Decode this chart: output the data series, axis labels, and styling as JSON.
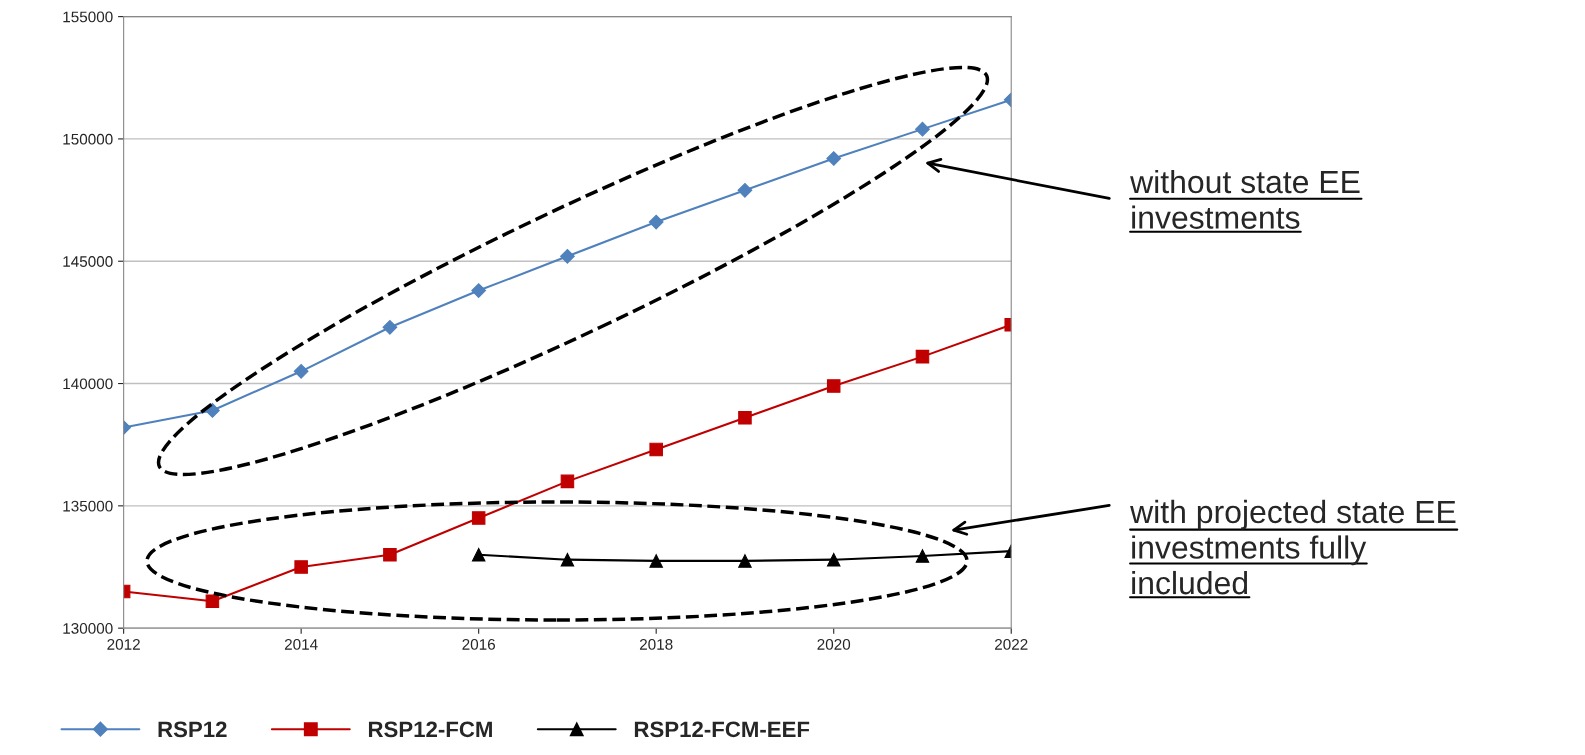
{
  "chart_data": {
    "type": "line",
    "x": [
      2012,
      2013,
      2014,
      2015,
      2016,
      2017,
      2018,
      2019,
      2020,
      2021,
      2022
    ],
    "series": [
      {
        "name": "RSP12",
        "color": "#4f81bd",
        "marker": "diamond",
        "values": [
          138200,
          138900,
          140500,
          142300,
          143800,
          145200,
          146600,
          147900,
          149200,
          150400,
          151600
        ]
      },
      {
        "name": "RSP12-FCM",
        "color": "#c00000",
        "marker": "square",
        "values": [
          131500,
          131100,
          132500,
          133000,
          134500,
          136000,
          137300,
          138600,
          139900,
          141100,
          142400
        ]
      },
      {
        "name": "RSP12-FCM-EEF",
        "color": "#000000",
        "marker": "triangle",
        "values": [
          null,
          null,
          null,
          null,
          133000,
          132800,
          132750,
          132750,
          132800,
          132950,
          133150
        ]
      }
    ],
    "xlim": [
      2012,
      2022
    ],
    "xticks": [
      2012,
      2014,
      2016,
      2018,
      2020,
      2022
    ],
    "ylim": [
      130000,
      155000
    ],
    "yticks": [
      130000,
      135000,
      140000,
      145000,
      150000,
      155000
    ],
    "grid": "y",
    "legend": "bottom",
    "line_style": "solid",
    "annotations": [
      "without state EE\ninvestments",
      "with projected state EE\ninvestments fully\nincluded"
    ]
  }
}
